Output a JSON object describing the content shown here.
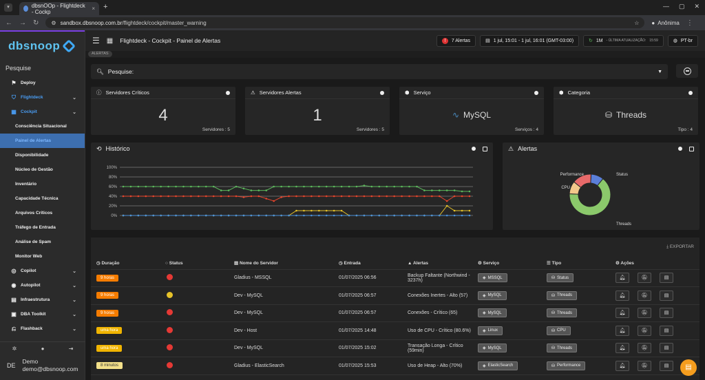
{
  "browser": {
    "tab_title": "dbsnOOp - Flightdeck - Cockp",
    "url_domain": "sandbox.dbsnoop.com.br",
    "url_path": "/flightdeck/cockpit/master_warning",
    "profile": "Anônima"
  },
  "sidebar": {
    "logo": "dbsnoop",
    "search_label": "Pesquise",
    "items": [
      {
        "label": "Deploy",
        "icon": "deploy-icon"
      },
      {
        "label": "Flightdeck",
        "icon": "shield-icon"
      },
      {
        "label": "Cockpit",
        "icon": "cockpit-icon"
      },
      {
        "label": "Consciência Situacional"
      },
      {
        "label": "Painel de Alertas"
      },
      {
        "label": "Disponibilidade"
      },
      {
        "label": "Núcleo de Gestão"
      },
      {
        "label": "Inventário"
      },
      {
        "label": "Capacidade Técnica"
      },
      {
        "label": "Arquivos Críticos"
      },
      {
        "label": "Tráfego de Entrada"
      },
      {
        "label": "Análise de Spam"
      },
      {
        "label": "Monitor Web"
      },
      {
        "label": "Copilot",
        "icon": "copilot-icon"
      },
      {
        "label": "Autopilot",
        "icon": "autopilot-icon"
      },
      {
        "label": "Infraestrutura",
        "icon": "server-icon"
      },
      {
        "label": "DBA Toolkit",
        "icon": "toolkit-icon"
      },
      {
        "label": "Flashback",
        "icon": "flashback-icon"
      }
    ],
    "user": {
      "initials": "DE",
      "name": "Demo",
      "email": "demo@dbsnoop.com"
    }
  },
  "topbar": {
    "title": "Flightdeck - Cockpit - Painel de Alertas",
    "alerts": "7 Alertas",
    "daterange": "1 jul, 15:01 - 1 jul, 16:01 (GMT-03:00)",
    "interval": "1M",
    "last_update_label": "- ÚLTIMA ATUALIZAÇÃO:",
    "last_update": "15:59",
    "lang": "PT-br"
  },
  "breadcrumb": "ALERTAS",
  "search": {
    "label": "Pesquise:"
  },
  "cards": [
    {
      "title": "Servidores Críticos",
      "value": "4",
      "foot": "Servidores : 5"
    },
    {
      "title": "Servidores Alertas",
      "value": "1",
      "foot": "Servidores : 5"
    },
    {
      "title": "Serviço",
      "value": "MySQL",
      "foot": "Serviços : 4"
    },
    {
      "title": "Categoria",
      "value": "Threads",
      "foot": "Tipo : 4"
    }
  ],
  "historico": {
    "title": "Histórico"
  },
  "alertas_panel": {
    "title": "Alertas"
  },
  "chart_data": [
    {
      "type": "line",
      "title": "Histórico",
      "yticks": [
        "100%",
        "80%",
        "60%",
        "40%",
        "20%",
        "0%"
      ],
      "ylim": [
        0,
        100
      ],
      "series": [
        {
          "color": "#5cb85c",
          "values": [
            60,
            60,
            60,
            60,
            60,
            60,
            60,
            60,
            60,
            60,
            60,
            60,
            60,
            52,
            52,
            60,
            56,
            52,
            52,
            52,
            60,
            60,
            60,
            60,
            60,
            60,
            60,
            60,
            60,
            60,
            60,
            60,
            62,
            60,
            60,
            60,
            60,
            60,
            60,
            60,
            52,
            52,
            52,
            52,
            52,
            50,
            50
          ]
        },
        {
          "color": "#e8452c",
          "values": [
            40,
            40,
            40,
            40,
            40,
            40,
            40,
            40,
            40,
            40,
            40,
            40,
            40,
            40,
            40,
            40,
            38,
            40,
            40,
            35,
            30,
            38,
            40,
            40,
            40,
            40,
            40,
            40,
            40,
            40,
            40,
            40,
            40,
            40,
            40,
            40,
            40,
            40,
            40,
            40,
            40,
            40,
            40,
            30,
            40,
            40,
            40
          ]
        },
        {
          "color": "#e6c229",
          "values": [
            0,
            0,
            0,
            0,
            0,
            0,
            0,
            0,
            0,
            0,
            0,
            0,
            0,
            0,
            0,
            0,
            0,
            0,
            0,
            0,
            0,
            0,
            0,
            10,
            10,
            10,
            10,
            10,
            10,
            10,
            0,
            0,
            0,
            0,
            0,
            0,
            0,
            0,
            0,
            0,
            0,
            0,
            0,
            20,
            10,
            10,
            10
          ]
        },
        {
          "color": "#4a90d9",
          "values": [
            0,
            0,
            0,
            0,
            0,
            0,
            0,
            0,
            0,
            0,
            0,
            0,
            0,
            0,
            0,
            0,
            0,
            0,
            0,
            0,
            0,
            0,
            0,
            0,
            0,
            0,
            0,
            0,
            0,
            0,
            0,
            0,
            0,
            0,
            0,
            0,
            0,
            0,
            0,
            0,
            0,
            0,
            0,
            0,
            0,
            0,
            0
          ]
        }
      ]
    },
    {
      "type": "pie",
      "title": "Alertas",
      "labels": [
        "Status",
        "Threads",
        "CPU",
        "Performance"
      ],
      "values": [
        10,
        65,
        10,
        15
      ],
      "colors": [
        "#5b7fd9",
        "#8bc96b",
        "#f3c88a",
        "#e86a6a"
      ]
    }
  ],
  "table": {
    "export_label": "EXPORTAR",
    "columns": [
      "Duração",
      "Status",
      "Nome do Servidor",
      "Entrada",
      "Alertas",
      "Serviço",
      "Tipo",
      "Ações"
    ],
    "rows": [
      {
        "dur": "9 horas",
        "durc": "o",
        "status": "r",
        "server": "Gladius - MSSQL",
        "entry": "01/07/2025 06:56",
        "alert": "Backup Faltante (Northwind - 3237h)",
        "service": "MSSQL",
        "type": "Status"
      },
      {
        "dur": "9 horas",
        "durc": "o",
        "status": "y",
        "server": "Dev - MySQL",
        "entry": "01/07/2025 06:57",
        "alert": "Conexões Inertes - Alto (57)",
        "service": "MySQL",
        "type": "Threads"
      },
      {
        "dur": "9 horas",
        "durc": "o",
        "status": "r",
        "server": "Dev - MySQL",
        "entry": "01/07/2025 06:57",
        "alert": "Conexões - Crítico (65)",
        "service": "MySQL",
        "type": "Threads"
      },
      {
        "dur": "uma hora",
        "durc": "y",
        "status": "r",
        "server": "Dev - Host",
        "entry": "01/07/2025 14:48",
        "alert": "Uso de CPU - Crítico (80.6%)",
        "service": "Linux",
        "type": "CPU"
      },
      {
        "dur": "uma hora",
        "durc": "y",
        "status": "r",
        "server": "Dev - MySQL",
        "entry": "01/07/2025 15:02",
        "alert": "Transação Longa - Crítico (59min)",
        "service": "MySQL",
        "type": "Threads"
      },
      {
        "dur": "8 minutos",
        "durc": "p",
        "status": "r",
        "server": "Gladius - ElasticSearch",
        "entry": "01/07/2025 15:53",
        "alert": "Uso de Heap - Alto (70%)",
        "service": "ElasticSearch",
        "type": "Performance"
      }
    ]
  }
}
